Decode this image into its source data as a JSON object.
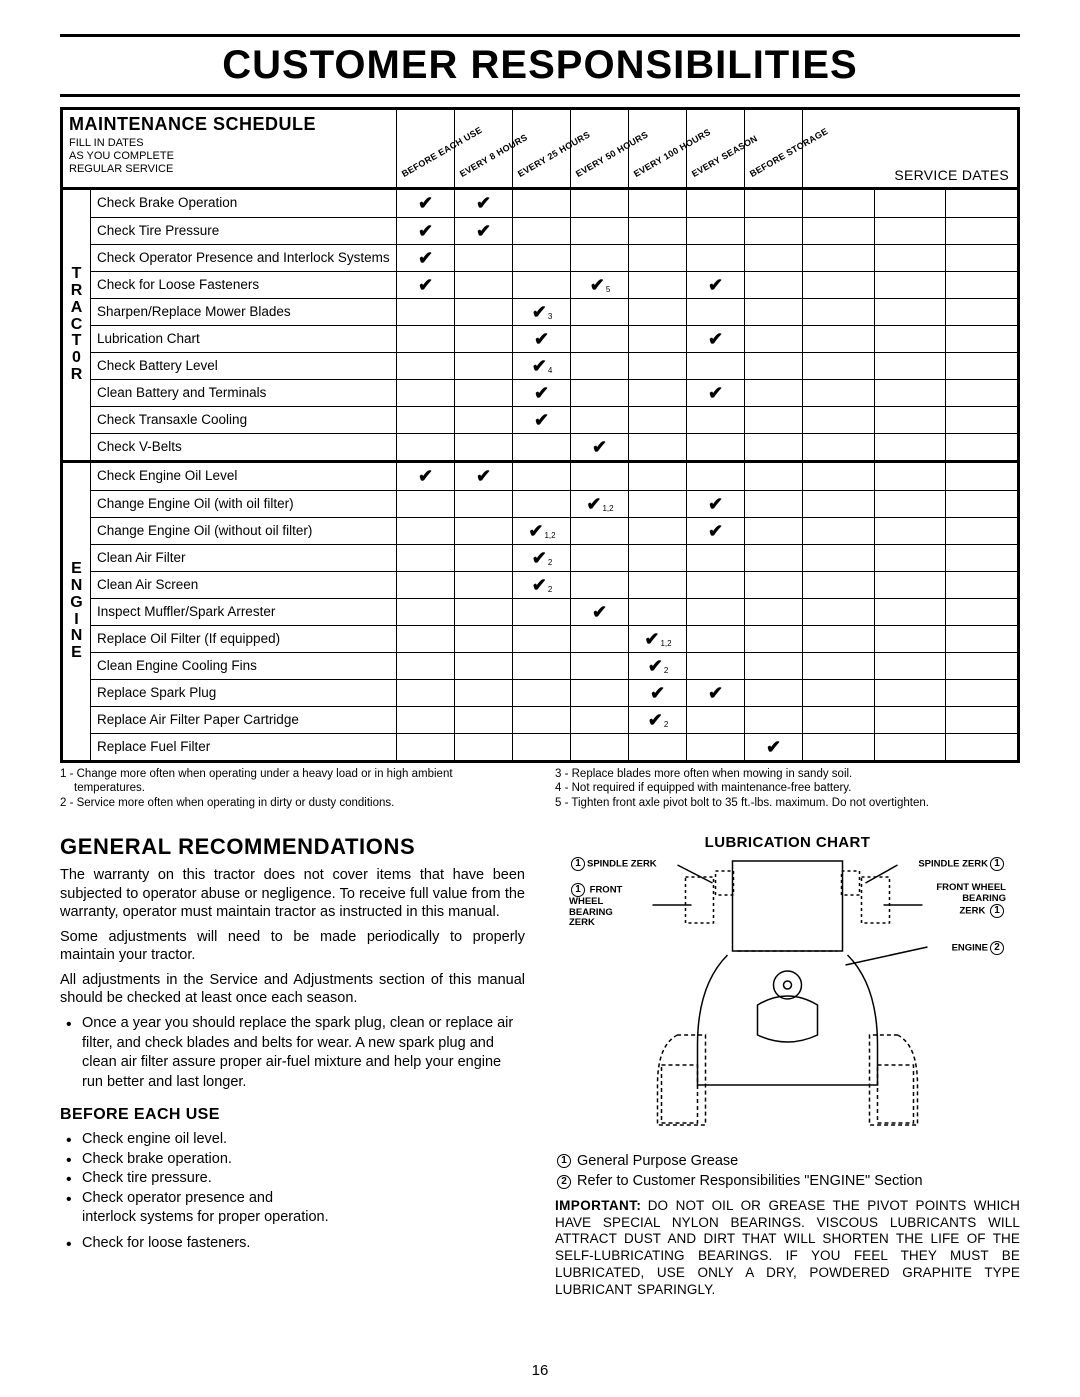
{
  "page_title": "CUSTOMER RESPONSIBILITIES",
  "page_number": "16",
  "schedule": {
    "title": "MAINTENANCE SCHEDULE",
    "subtitle_lines": [
      "FILL IN DATES",
      "AS YOU COMPLETE",
      "REGULAR SERVICE"
    ],
    "interval_headers": [
      "BEFORE EACH USE",
      "EVERY 8 HOURS",
      "EVERY 25 HOURS",
      "EVERY 50 HOURS",
      "EVERY 100 HOURS",
      "EVERY SEASON",
      "BEFORE STORAGE"
    ],
    "service_dates_label": "SERVICE DATES",
    "categories": [
      {
        "label": "TRACTOR",
        "rows": [
          {
            "task": "Check Brake Operation",
            "marks": [
              "✔",
              "✔",
              "",
              "",
              "",
              "",
              ""
            ]
          },
          {
            "task": "Check Tire Pressure",
            "marks": [
              "✔",
              "✔",
              "",
              "",
              "",
              "",
              ""
            ]
          },
          {
            "task": "Check Operator Presence and Interlock Systems",
            "marks": [
              "✔",
              "",
              "",
              "",
              "",
              "",
              ""
            ]
          },
          {
            "task": "Check for Loose Fasteners",
            "marks": [
              "✔",
              "",
              "",
              "✔",
              "",
              "✔",
              ""
            ],
            "subs": [
              "",
              "",
              "",
              "5",
              "",
              "",
              ""
            ]
          },
          {
            "task": "Sharpen/Replace Mower Blades",
            "marks": [
              "",
              "",
              "✔",
              "",
              "",
              "",
              ""
            ],
            "subs": [
              "",
              "",
              "3",
              "",
              "",
              "",
              ""
            ]
          },
          {
            "task": "Lubrication Chart",
            "marks": [
              "",
              "",
              "✔",
              "",
              "",
              "✔",
              ""
            ]
          },
          {
            "task": "Check Battery Level",
            "marks": [
              "",
              "",
              "✔",
              "",
              "",
              "",
              ""
            ],
            "subs": [
              "",
              "",
              "4",
              "",
              "",
              "",
              ""
            ]
          },
          {
            "task": "Clean Battery and Terminals",
            "marks": [
              "",
              "",
              "✔",
              "",
              "",
              "✔",
              ""
            ]
          },
          {
            "task": "Check Transaxle Cooling",
            "marks": [
              "",
              "",
              "✔",
              "",
              "",
              "",
              ""
            ]
          },
          {
            "task": "Check V-Belts",
            "marks": [
              "",
              "",
              "",
              "✔",
              "",
              "",
              ""
            ]
          }
        ]
      },
      {
        "label": "ENGINE",
        "rows": [
          {
            "task": "Check Engine Oil Level",
            "marks": [
              "✔",
              "✔",
              "",
              "",
              "",
              "",
              ""
            ]
          },
          {
            "task": "Change Engine Oil (with oil filter)",
            "marks": [
              "",
              "",
              "",
              "✔",
              "",
              "✔",
              ""
            ],
            "subs": [
              "",
              "",
              "",
              "1,2",
              "",
              "",
              ""
            ]
          },
          {
            "task": "Change Engine Oil (without oil filter)",
            "marks": [
              "",
              "",
              "✔",
              "",
              "",
              "✔",
              ""
            ],
            "subs": [
              "",
              "",
              "1,2",
              "",
              "",
              "",
              ""
            ]
          },
          {
            "task": "Clean Air Filter",
            "marks": [
              "",
              "",
              "✔",
              "",
              "",
              "",
              ""
            ],
            "subs": [
              "",
              "",
              "2",
              "",
              "",
              "",
              ""
            ]
          },
          {
            "task": "Clean Air Screen",
            "marks": [
              "",
              "",
              "✔",
              "",
              "",
              "",
              ""
            ],
            "subs": [
              "",
              "",
              "2",
              "",
              "",
              "",
              ""
            ]
          },
          {
            "task": "Inspect Muffler/Spark Arrester",
            "marks": [
              "",
              "",
              "",
              "✔",
              "",
              "",
              ""
            ]
          },
          {
            "task": "Replace Oil Filter (If equipped)",
            "marks": [
              "",
              "",
              "",
              "",
              "✔",
              "",
              ""
            ],
            "subs": [
              "",
              "",
              "",
              "",
              "1,2",
              "",
              ""
            ]
          },
          {
            "task": "Clean Engine Cooling Fins",
            "marks": [
              "",
              "",
              "",
              "",
              "✔",
              "",
              ""
            ],
            "subs": [
              "",
              "",
              "",
              "",
              "2",
              "",
              ""
            ]
          },
          {
            "task": "Replace Spark Plug",
            "marks": [
              "",
              "",
              "",
              "",
              "✔",
              "✔",
              ""
            ]
          },
          {
            "task": "Replace Air Filter Paper Cartridge",
            "marks": [
              "",
              "",
              "",
              "",
              "✔",
              "",
              ""
            ],
            "subs": [
              "",
              "",
              "",
              "",
              "2",
              "",
              ""
            ]
          },
          {
            "task": "Replace Fuel Filter",
            "marks": [
              "",
              "",
              "",
              "",
              "",
              "",
              "✔"
            ]
          }
        ]
      }
    ],
    "footnotes_left": [
      "1 - Change more often when operating under a heavy load or in high ambient temperatures.",
      "2 - Service more often when operating in dirty or dusty conditions."
    ],
    "footnotes_right": [
      "3 - Replace blades more often when mowing in sandy soil.",
      "4 - Not required if equipped with maintenance-free battery.",
      "5 - Tighten front axle pivot bolt to 35 ft.-lbs. maximum. Do not overtighten."
    ]
  },
  "general": {
    "title": "GENERAL  RECOMMENDATIONS",
    "p1": "The warranty on this tractor does not cover items that have been subjected to operator abuse or negligence.  To receive full value from the warranty, operator must maintain tractor as instructed in this manual.",
    "p2": "Some adjustments will need to be made periodically to properly maintain your tractor.",
    "p3": "All adjustments in the Service and Adjustments section of this manual should be checked at least once each season.",
    "bullet": "Once a year you should replace the spark plug, clean or replace air filter, and check blades and belts for wear.  A new spark plug and clean air filter assure proper air-fuel mixture and help your engine run better and last longer."
  },
  "before": {
    "title": "BEFORE EACH USE",
    "items": [
      "Check engine oil level.",
      "Check brake operation.",
      "Check tire pressure.",
      "Check operator presence and",
      "interlock systems for proper operation.",
      "Check for loose fasteners."
    ]
  },
  "lube": {
    "title": "LUBRICATION CHART",
    "labels": {
      "sp_left": "SPINDLE ZERK",
      "sp_right": "SPINDLE ZERK",
      "fw_left": "FRONT WHEEL BEARING ZERK",
      "fw_right": "FRONT WHEEL BEARING ZERK",
      "engine": "ENGINE"
    },
    "legend1": "General Purpose Grease",
    "legend2": "Refer to Customer Responsibilities \"ENGINE\" Section",
    "important_label": "IMPORTANT:",
    "important_body": "DO NOT OIL OR GREASE THE PIVOT POINTS WHICH HAVE SPECIAL NYLON BEARINGS. VISCOUS LUBRICANTS WILL ATTRACT DUST AND DIRT THAT WILL SHORTEN THE LIFE OF THE SELF-LUBRICATING BEARINGS.  IF YOU FEEL THEY MUST BE LUBRICATED, USE ONLY A DRY, POWDERED GRAPHITE TYPE LUBRICANT SPARINGLY."
  }
}
